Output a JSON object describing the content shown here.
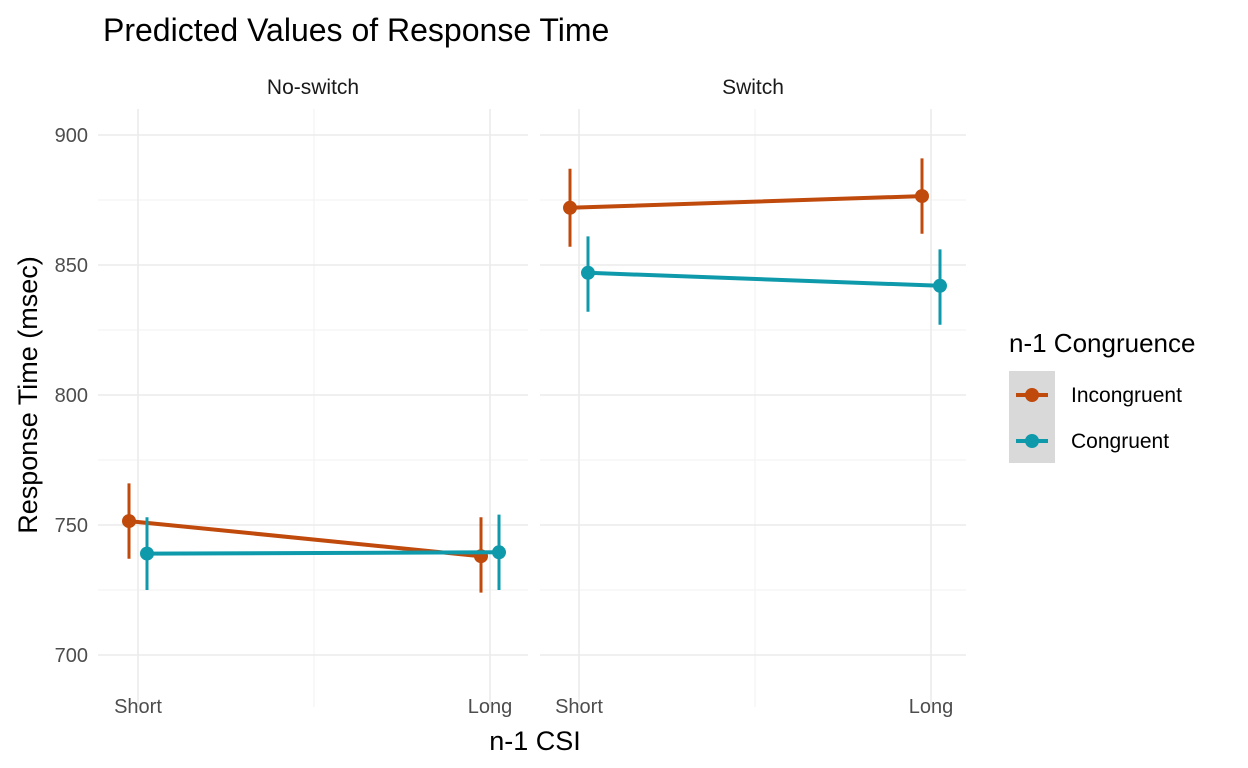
{
  "chart_data": {
    "type": "line",
    "title": "Predicted Values of Response Time",
    "xlabel": "n-1 CSI",
    "ylabel": "Response Time (msec)",
    "x_categories": [
      "Short",
      "Long"
    ],
    "y_ticks": [
      700,
      750,
      800,
      850,
      900
    ],
    "ylim": [
      680,
      910
    ],
    "grid": true,
    "legend": {
      "title": "n-1 Congruence",
      "position": "right",
      "entries": [
        "Incongruent",
        "Congruent"
      ]
    },
    "panels": [
      {
        "label": "No-switch",
        "series": [
          {
            "name": "Incongruent",
            "color": "#c0490c",
            "values": [
              751.5,
              738
            ],
            "ci_low": [
              737,
              724
            ],
            "ci_high": [
              766,
              753
            ]
          },
          {
            "name": "Congruent",
            "color": "#0f9aab",
            "values": [
              739,
              739.5
            ],
            "ci_low": [
              725,
              725
            ],
            "ci_high": [
              753,
              754
            ]
          }
        ]
      },
      {
        "label": "Switch",
        "series": [
          {
            "name": "Incongruent",
            "color": "#c0490c",
            "values": [
              872,
              876.5
            ],
            "ci_low": [
              857,
              862
            ],
            "ci_high": [
              887,
              891
            ]
          },
          {
            "name": "Congruent",
            "color": "#0f9aab",
            "values": [
              847,
              842
            ],
            "ci_low": [
              832,
              827
            ],
            "ci_high": [
              861,
              856
            ]
          }
        ]
      }
    ]
  }
}
